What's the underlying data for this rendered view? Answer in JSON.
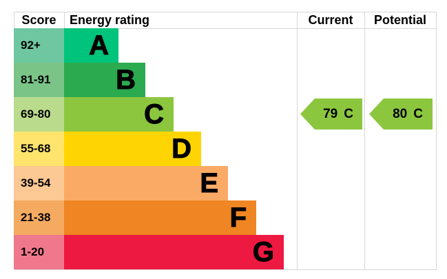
{
  "headers": {
    "score": "Score",
    "energy_rating": "Energy rating",
    "current": "Current",
    "potential": "Potential"
  },
  "bands": [
    {
      "letter": "A",
      "score": "92+",
      "color": "#00c37c",
      "score_color": "#6fc7a1"
    },
    {
      "letter": "B",
      "score": "81-91",
      "color": "#2baa50",
      "score_color": "#7bc487"
    },
    {
      "letter": "C",
      "score": "69-80",
      "color": "#8cc63f",
      "score_color": "#badb8c"
    },
    {
      "letter": "D",
      "score": "55-68",
      "color": "#fed502",
      "score_color": "#fee46d"
    },
    {
      "letter": "E",
      "score": "39-54",
      "color": "#fbaa65",
      "score_color": "#fcc893"
    },
    {
      "letter": "F",
      "score": "21-38",
      "color": "#ef8523",
      "score_color": "#f4aa60"
    },
    {
      "letter": "G",
      "score": "1-20",
      "color": "#ed1941",
      "score_color": "#f0788c"
    }
  ],
  "current": {
    "value": "79",
    "band": "C",
    "arrow_color": "#8cc63f"
  },
  "potential": {
    "value": "80",
    "band": "C",
    "arrow_color": "#8cc63f"
  },
  "border_color": "#d6d6d6",
  "chart_data": {
    "type": "bar",
    "title": "Energy rating",
    "categories": [
      "A",
      "B",
      "C",
      "D",
      "E",
      "F",
      "G"
    ],
    "score_ranges": [
      "92+",
      "81-91",
      "69-80",
      "55-68",
      "39-54",
      "21-38",
      "1-20"
    ],
    "band_colors": [
      "#00c37c",
      "#2baa50",
      "#8cc63f",
      "#fed502",
      "#fbaa65",
      "#ef8523",
      "#ed1941"
    ],
    "bar_lengths_relative": [
      1,
      1.49,
      2.01,
      2.52,
      3.01,
      3.53,
      4.04
    ],
    "columns": [
      "Score",
      "Energy rating",
      "Current",
      "Potential"
    ],
    "current": {
      "value": 79,
      "band": "C"
    },
    "potential": {
      "value": 80,
      "band": "C"
    },
    "legend": "none",
    "grid": "off"
  }
}
